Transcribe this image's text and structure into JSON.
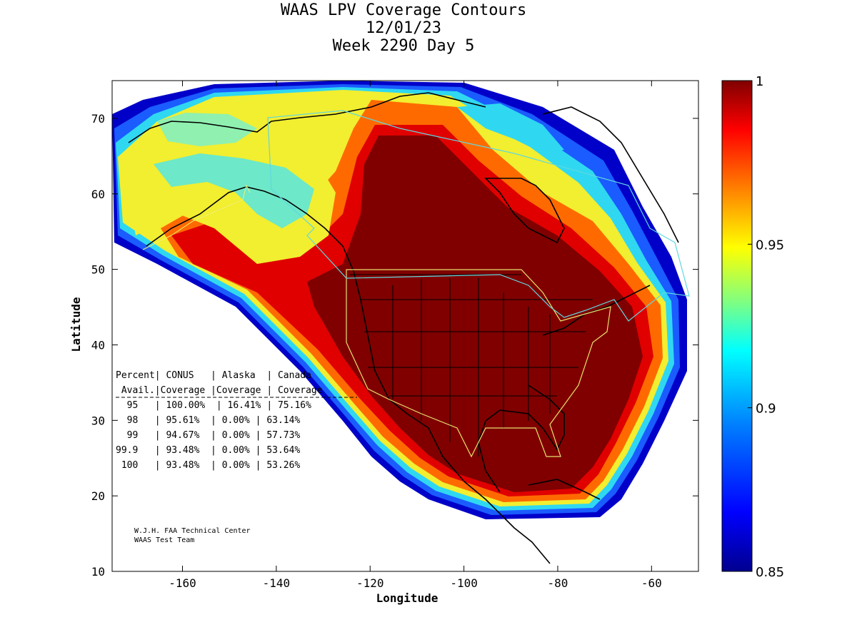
{
  "title": {
    "line1": "WAAS LPV Coverage Contours",
    "line2": "12/01/23",
    "line3": "Week 2290 Day 5"
  },
  "axes": {
    "xlabel": "Longitude",
    "ylabel": "Latitude",
    "x_range": [
      -175,
      -50
    ],
    "y_range": [
      10,
      75
    ],
    "x_ticks": [
      "-160",
      "-140",
      "-120",
      "-100",
      "-80",
      "-60"
    ],
    "y_ticks": [
      "10",
      "20",
      "30",
      "40",
      "50",
      "60",
      "70"
    ]
  },
  "colorbar": {
    "range": [
      0.85,
      1
    ],
    "tick_labels": [
      "1",
      "0.95",
      "0.9",
      "0.85"
    ]
  },
  "stats_table": {
    "header1": "Percent| CONUS   | Alaska  | Canada",
    "header2": " Avail.|Coverage |Coverage | Coverage",
    "rows": [
      "  95   | 100.00%  | 16.41% | 75.16%",
      "  98   | 95.61%  | 0.00% | 63.14%",
      "  99   | 94.67%  | 0.00% | 57.73%",
      "99.9   | 93.48%  | 0.00% | 53.64%",
      " 100   | 93.48%  | 0.00% | 53.26%"
    ]
  },
  "credits": {
    "line1": "W.J.H. FAA Technical Center",
    "line2": "WAAS Test Team"
  },
  "colors": {
    "full_coverage": "#800000",
    "high": "#d40000",
    "mid_high": "#ff4a00",
    "yellow": "#f5ef2a",
    "cyan": "#3fe9d9",
    "blue": "#0f60ff",
    "deep_blue": "#0000a8",
    "service_conus_boundary": "#d8d86a",
    "service_canada_alaska_boundary": "#5fd0d0"
  }
}
